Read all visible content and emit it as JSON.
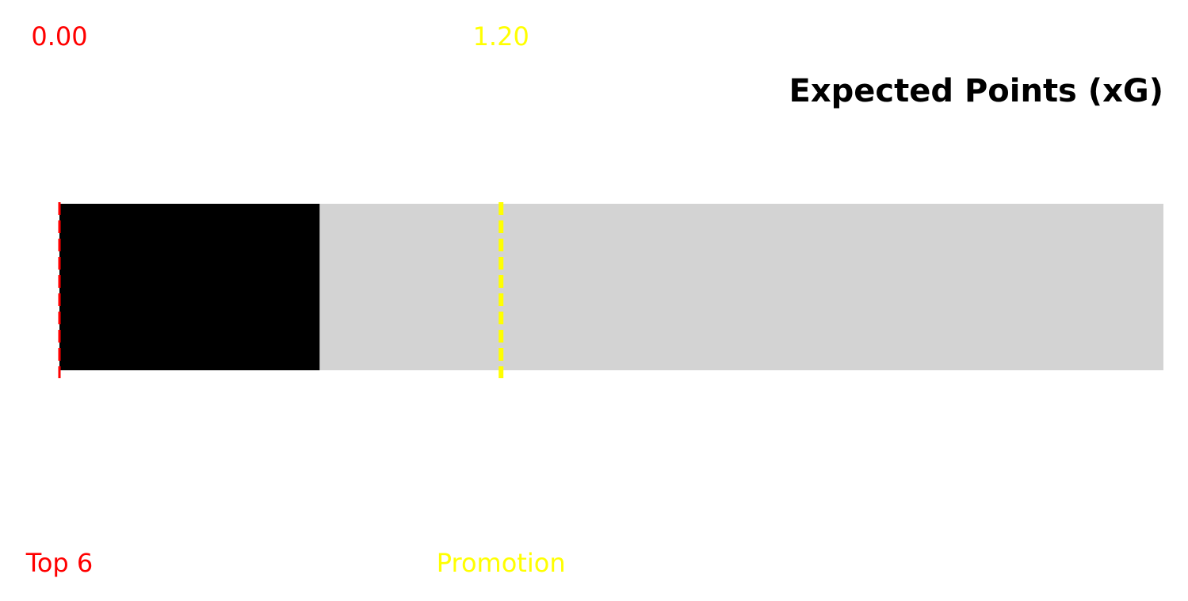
{
  "chart_data": {
    "type": "bar",
    "orientation": "horizontal",
    "title": "Expected Points (xG)",
    "xlim": [
      0,
      3
    ],
    "value": 0.707,
    "bar_color": "#000000",
    "track_color": "#d3d3d3",
    "grid": false,
    "thresholds": [
      {
        "value": 0.0,
        "value_label": "0.00",
        "label": "Top 6",
        "color": "#ff0000",
        "style": "dashed"
      },
      {
        "value": 1.2,
        "value_label": "1.20",
        "label": "Promotion",
        "color": "#ffff00",
        "style": "dashed"
      }
    ]
  }
}
